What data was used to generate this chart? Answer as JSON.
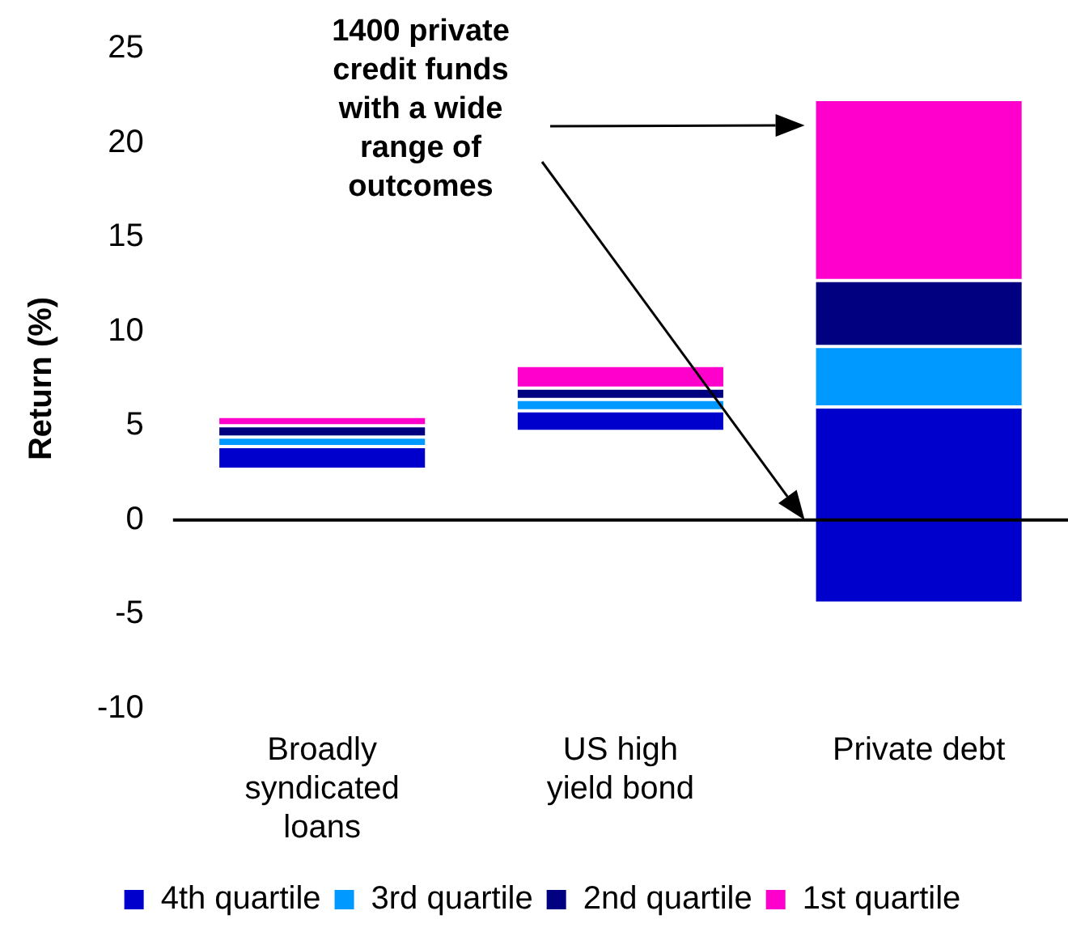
{
  "chart_data": {
    "type": "bar",
    "ylabel": "Return (%)",
    "categories": [
      "Broadly syndicated loans",
      "US high yield bond",
      "Private debt"
    ],
    "series": [
      {
        "name": "4th quartile",
        "color": "#0000cc",
        "base": [
          2.7,
          4.7,
          -4.4
        ],
        "values": [
          1.2,
          1.1,
          10.4
        ]
      },
      {
        "name": "3rd quartile",
        "color": "#0099ff",
        "base": [
          3.9,
          5.8,
          6.0
        ],
        "values": [
          0.5,
          0.6,
          3.2
        ]
      },
      {
        "name": "2nd quartile",
        "color": "#000080",
        "base": [
          4.4,
          6.4,
          9.2
        ],
        "values": [
          0.6,
          0.6,
          3.5
        ]
      },
      {
        "name": "1st quartile",
        "color": "#ff00cc",
        "base": [
          5.0,
          7.0,
          12.7
        ],
        "values": [
          0.5,
          1.2,
          9.6
        ]
      }
    ],
    "ylim": [
      -10,
      25
    ],
    "yticks": [
      -10,
      -5,
      0,
      5,
      10,
      15,
      20,
      25
    ],
    "ref_lines": [
      {
        "axis": "y",
        "value": 0,
        "color": "#000000"
      }
    ],
    "annotations": [
      "1400 private credit funds with a wide range of outcomes"
    ],
    "grid": false,
    "legend": "bottom"
  }
}
